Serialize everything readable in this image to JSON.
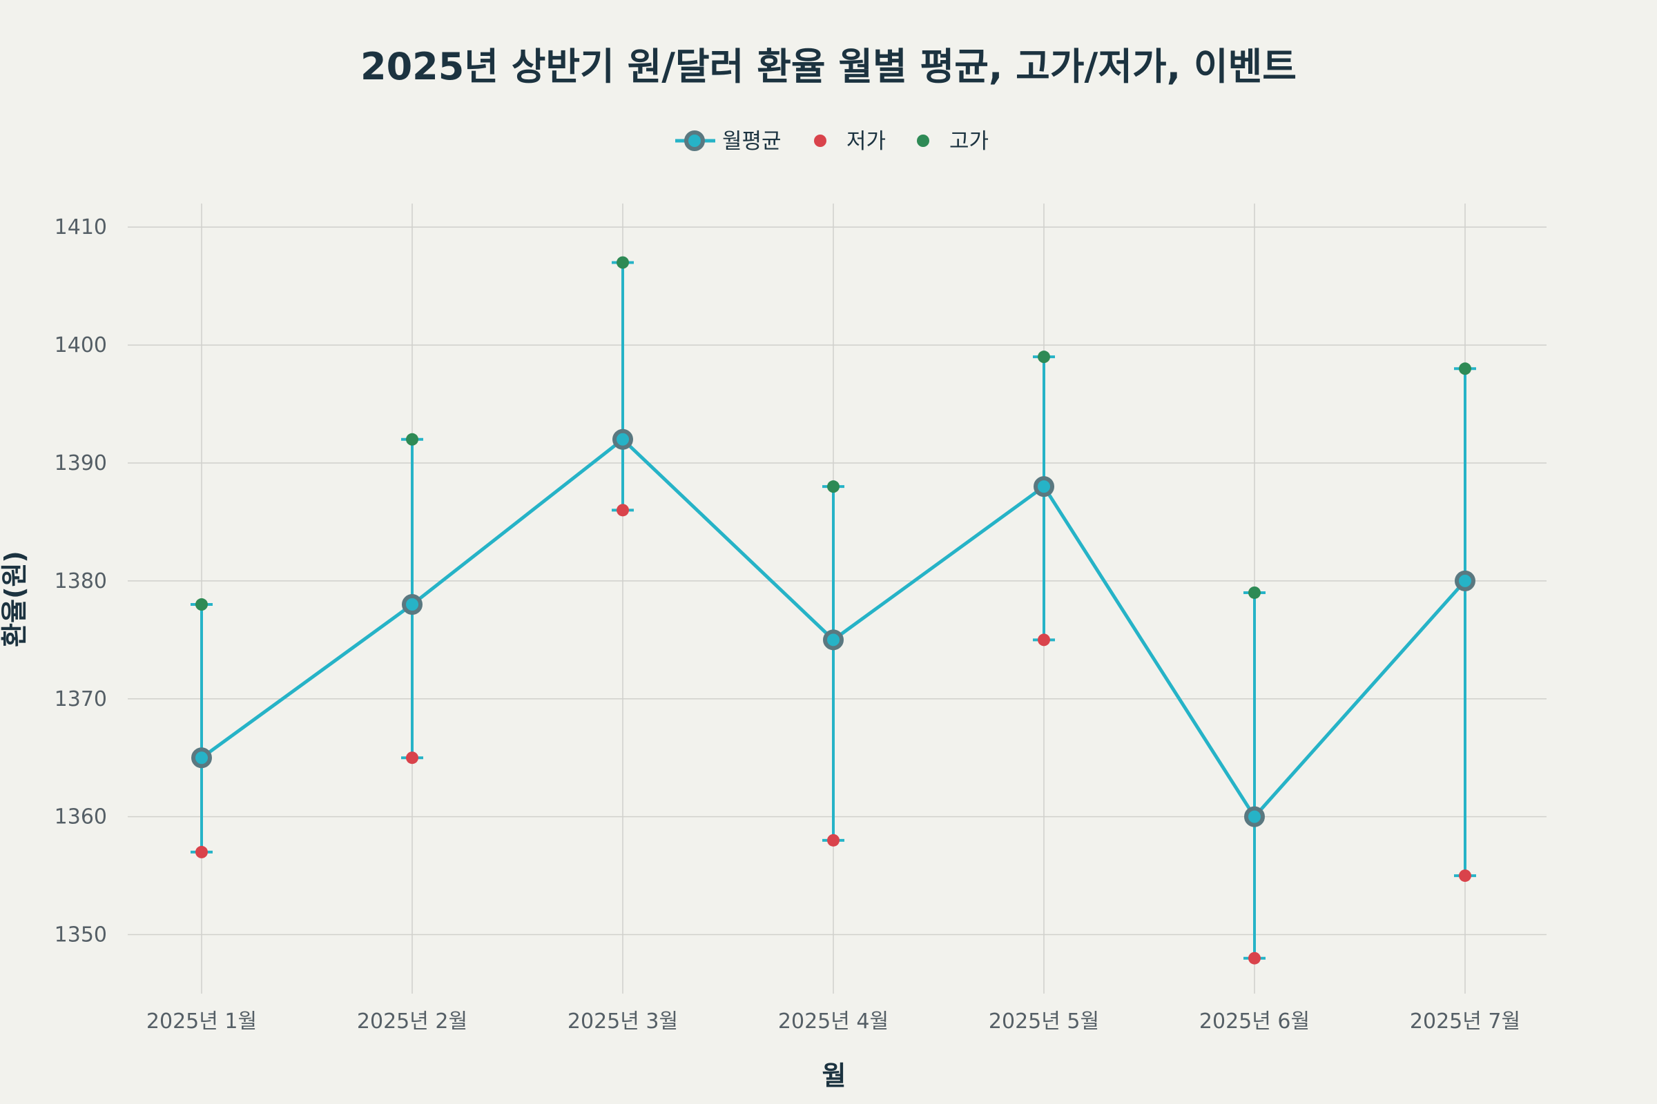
{
  "chart_data": {
    "type": "line",
    "title": "2025년 상반기 원/달러 환율 월별 평균, 고가/저가, 이벤트",
    "xlabel": "월",
    "ylabel": "환율(원)",
    "categories": [
      "2025년 1월",
      "2025년 2월",
      "2025년 3월",
      "2025년 4월",
      "2025년 5월",
      "2025년 6월",
      "2025년 7월"
    ],
    "ylim": [
      1345,
      1412
    ],
    "yticks": [
      1350,
      1360,
      1370,
      1380,
      1390,
      1400,
      1410
    ],
    "grid": true,
    "legend_position": "top-center",
    "series": [
      {
        "name": "월평균",
        "values": [
          1365,
          1378,
          1392,
          1375,
          1388,
          1360,
          1380
        ],
        "color": "#26b3c7",
        "marker_color": "#5a7880"
      },
      {
        "name": "저가",
        "values": [
          1357,
          1365,
          1386,
          1358,
          1375,
          1348,
          1355
        ],
        "color": "#d9434b"
      },
      {
        "name": "고가",
        "values": [
          1378,
          1392,
          1407,
          1388,
          1399,
          1379,
          1398
        ],
        "color": "#2e8a55"
      }
    ]
  }
}
